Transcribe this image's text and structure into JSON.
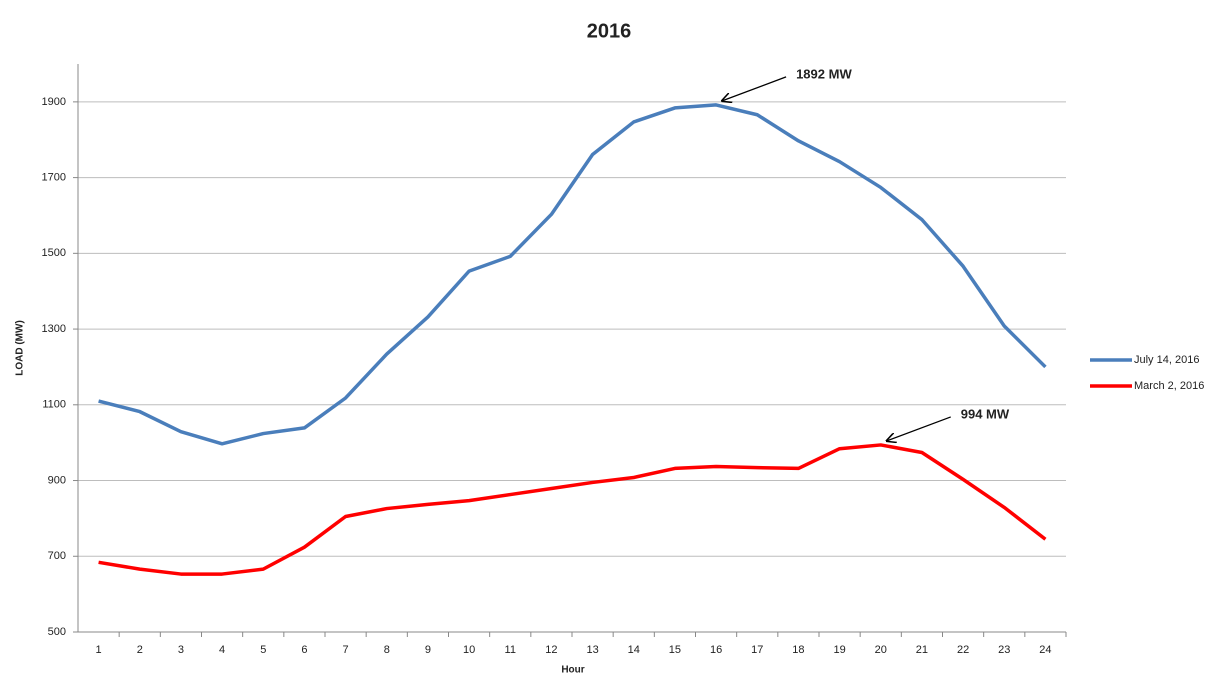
{
  "chart_data": {
    "type": "line",
    "title": "2016",
    "x_label": "Hour",
    "y_label": "LOAD (MW)",
    "categories": [
      "1",
      "2",
      "3",
      "4",
      "5",
      "6",
      "7",
      "8",
      "9",
      "10",
      "11",
      "12",
      "13",
      "14",
      "15",
      "16",
      "17",
      "18",
      "19",
      "20",
      "21",
      "22",
      "23",
      "24"
    ],
    "series": [
      {
        "name": "July 14, 2016",
        "color": "#4a7ebb",
        "values": [
          1110,
          1082,
          1029,
          997,
          1024,
          1039,
          1118,
          1234,
          1332,
          1453,
          1492,
          1603,
          1761,
          1847,
          1884,
          1892,
          1866,
          1797,
          1742,
          1674,
          1589,
          1466,
          1308,
          1200
        ]
      },
      {
        "name": "March 2, 2016",
        "color": "#ff0000",
        "values": [
          684,
          666,
          653,
          653,
          666,
          724,
          805,
          826,
          837,
          847,
          863,
          879,
          895,
          908,
          932,
          937,
          934,
          932,
          984,
          994,
          974,
          903,
          829,
          745
        ]
      }
    ],
    "ylim": [
      500,
      2000
    ],
    "yticks": [
      500,
      700,
      900,
      1100,
      1300,
      1500,
      1700,
      1900
    ],
    "grid": true,
    "legend": "right",
    "annotations": [
      {
        "text": "1892 MW",
        "x": "16",
        "series": 0
      },
      {
        "text": "994 MW",
        "x": "20",
        "series": 1
      }
    ]
  }
}
